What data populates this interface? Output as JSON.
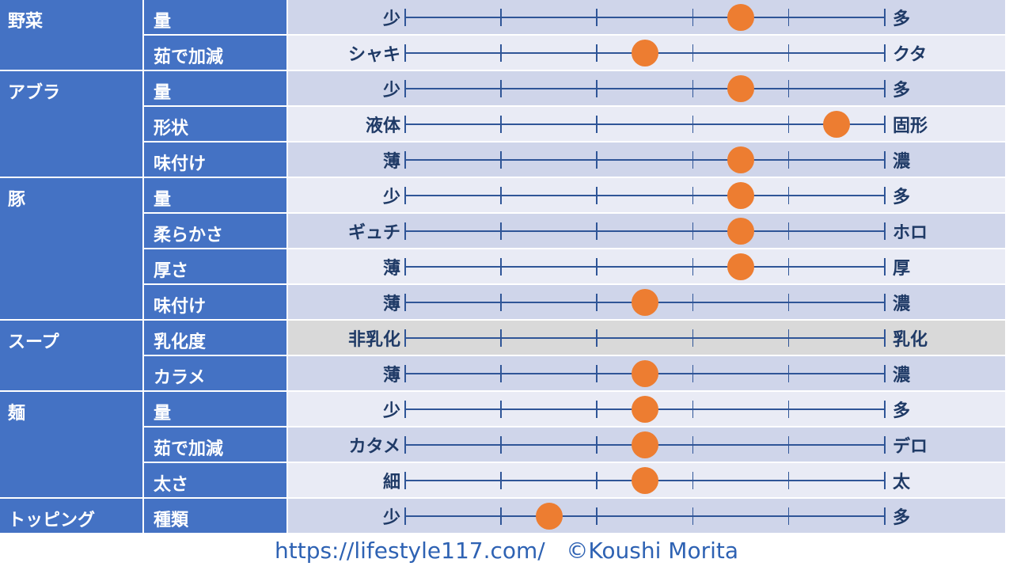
{
  "colors": {
    "label_bg": "#4472c4",
    "band_dark": "#cfd5ea",
    "band_light": "#e9ebf5",
    "band_gray": "#d9d9d9",
    "track": "#2f5597",
    "dot": "#ed7d31",
    "text_dark": "#1f3a66"
  },
  "chart_data": {
    "type": "scatter",
    "scale": {
      "min": 0,
      "max": 5,
      "ticks": [
        0,
        1,
        2,
        3,
        4,
        5
      ]
    },
    "groups": [
      {
        "name": "野菜",
        "items": [
          {
            "label": "量",
            "left": "少",
            "right": "多",
            "value": 3.5
          },
          {
            "label": "茹で加減",
            "left": "シャキ",
            "right": "クタ",
            "value": 2.5
          }
        ]
      },
      {
        "name": "アブラ",
        "items": [
          {
            "label": "量",
            "left": "少",
            "right": "多",
            "value": 3.5
          },
          {
            "label": "形状",
            "left": "液体",
            "right": "固形",
            "value": 4.5
          },
          {
            "label": "味付け",
            "left": "薄",
            "right": "濃",
            "value": 3.5
          }
        ]
      },
      {
        "name": "豚",
        "items": [
          {
            "label": "量",
            "left": "少",
            "right": "多",
            "value": 3.5
          },
          {
            "label": "柔らかさ",
            "left": "ギュチ",
            "right": "ホロ",
            "value": 3.5
          },
          {
            "label": "厚さ",
            "left": "薄",
            "right": "厚",
            "value": 3.5
          },
          {
            "label": "味付け",
            "left": "薄",
            "right": "濃",
            "value": 2.5
          }
        ]
      },
      {
        "name": "スープ",
        "items": [
          {
            "label": "乳化度",
            "left": "非乳化",
            "right": "乳化",
            "value": null
          },
          {
            "label": "カラメ",
            "left": "薄",
            "right": "濃",
            "value": 2.5
          }
        ]
      },
      {
        "name": "麺",
        "items": [
          {
            "label": "量",
            "left": "少",
            "right": "多",
            "value": 2.5
          },
          {
            "label": "茹で加減",
            "left": "カタメ",
            "right": "デロ",
            "value": 2.5
          },
          {
            "label": "太さ",
            "left": "細",
            "right": "太",
            "value": 2.5
          }
        ]
      },
      {
        "name": "トッピング",
        "items": [
          {
            "label": "種類",
            "left": "少",
            "right": "多",
            "value": 1.5
          }
        ]
      }
    ]
  },
  "footer": {
    "url": "https://lifestyle117.com/",
    "copyright": "©Koushi Morita"
  }
}
